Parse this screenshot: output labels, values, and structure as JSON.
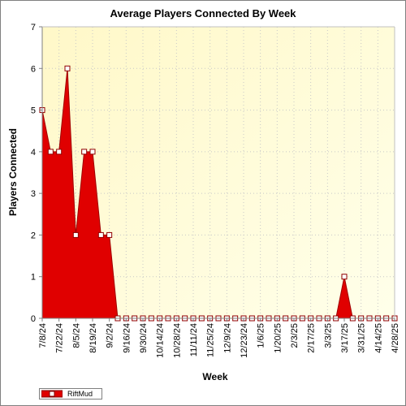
{
  "chart_data": {
    "type": "area",
    "title": "Average Players Connected By Week",
    "xlabel": "Week",
    "ylabel": "Players Connected",
    "ylim": [
      0,
      7
    ],
    "yticks": [
      0,
      1,
      2,
      3,
      4,
      5,
      6,
      7
    ],
    "grid": true,
    "legend_position": "bottom-left",
    "fill_color": "#e00000",
    "background_color": "#fffde0",
    "x_tick_labels": [
      "7/8/24",
      "7/22/24",
      "8/5/24",
      "8/19/24",
      "9/2/24",
      "9/16/24",
      "9/30/24",
      "10/14/24",
      "10/28/24",
      "11/11/24",
      "11/25/24",
      "12/9/24",
      "12/23/24",
      "1/6/25",
      "1/20/25",
      "2/3/25",
      "2/17/25",
      "3/3/25",
      "3/17/25",
      "3/31/25",
      "4/14/25",
      "4/28/25"
    ],
    "series": [
      {
        "name": "RiftMud",
        "x": [
          "7/8/24",
          "7/15/24",
          "7/22/24",
          "7/29/24",
          "8/5/24",
          "8/12/24",
          "8/19/24",
          "8/26/24",
          "9/2/24",
          "9/9/24",
          "9/16/24",
          "9/23/24",
          "9/30/24",
          "10/7/24",
          "10/14/24",
          "10/21/24",
          "10/28/24",
          "11/4/24",
          "11/11/24",
          "11/18/24",
          "11/25/24",
          "12/2/24",
          "12/9/24",
          "12/16/24",
          "12/23/24",
          "12/30/24",
          "1/6/25",
          "1/13/25",
          "1/20/25",
          "1/27/25",
          "2/3/25",
          "2/10/25",
          "2/17/25",
          "2/24/25",
          "3/3/25",
          "3/10/25",
          "3/17/25",
          "3/24/25",
          "3/31/25",
          "4/7/25",
          "4/14/25",
          "4/21/25",
          "4/28/25"
        ],
        "values": [
          5,
          4,
          4,
          6,
          2,
          4,
          4,
          2,
          2,
          0,
          0,
          0,
          0,
          0,
          0,
          0,
          0,
          0,
          0,
          0,
          0,
          0,
          0,
          0,
          0,
          0,
          0,
          0,
          0,
          0,
          0,
          0,
          0,
          0,
          0,
          0,
          1,
          0,
          0,
          0,
          0,
          0,
          0
        ]
      }
    ]
  }
}
